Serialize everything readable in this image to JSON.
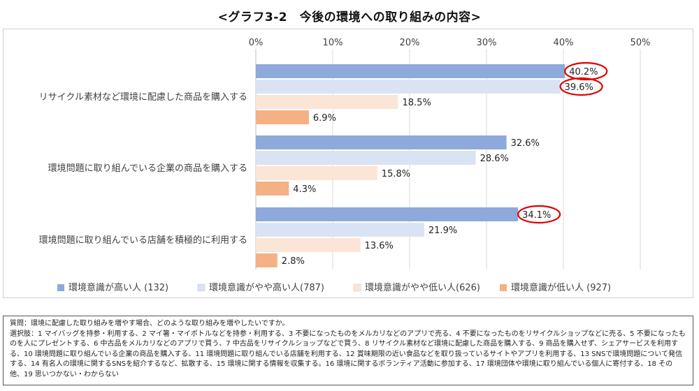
{
  "title": "<グラフ3-2　今後の環境への取り組みの内容>",
  "chart_data": {
    "type": "bar",
    "orientation": "horizontal",
    "title": "<グラフ3-2　今後の環境への取り組みの内容>",
    "categories": [
      "リサイクル素材など環境に配慮した商品を購入する",
      "環境問題に取り組んでいる企業の商品を購入する",
      "環境問題に取り組んでいる店舗を積極的に利用する"
    ],
    "series": [
      {
        "name": "環境意識が高い人 (132)",
        "values": [
          40.2,
          32.6,
          34.1
        ],
        "color": "#8ea9db"
      },
      {
        "name": "環境意識がやや高い人(787)",
        "values": [
          39.6,
          28.6,
          21.9
        ],
        "color": "#dae3f3"
      },
      {
        "name": "環境意識がやや低い人(626)",
        "values": [
          18.5,
          15.8,
          13.6
        ],
        "color": "#fbe5d6"
      },
      {
        "name": "環境意識が低い人 (927)",
        "values": [
          6.9,
          4.3,
          2.8
        ],
        "color": "#f4b183"
      }
    ],
    "x_ticks": [
      "0%",
      "10%",
      "20%",
      "30%",
      "40%",
      "50%"
    ],
    "xlim": [
      0,
      50
    ],
    "value_format": "percent_one_decimal",
    "highlighted": [
      [
        0,
        0
      ],
      [
        1,
        0
      ],
      [
        0,
        2
      ]
    ],
    "highlight_color": "#e00000",
    "legend_position": "bottom",
    "grid": true,
    "gridline_color": "#d9d9d9"
  },
  "notes": {
    "question": "質問：環境に配慮した取り組みを増やす場合、どのような取り組みを増やしたいですか。",
    "options": "選択肢：1 マイバッグを持参・利用する、2 マイ箸・マイボトルなどを持参・利用する、3 不要になったものをメルカリなどのアプリで売る、4 不要になったものをリサイクルショップなどに売る、5 不要になったものを人にプレゼントする、6 中古品をメルカリなどのアプリで買う、7 中古品をリサイクルショップなどで買う、8 リサイクル素材など環境に配慮した商品を購入する、9 商品を購入せず、シェアサービスを利用する、10 環境問題に取り組んでいる企業の商品を購入する、11 環境問題に取り組んでいる店舗を利用する、12 賞味期限の近い食品などを取り扱っているサイトやアプリを利用する、13 SNSで環境問題について発信する、14 有名人の環境に関するSNSを紹介するなど、拡散する、15 環境に関する情報を収集する。16 環境に関するボランティア活動に参加する、17 環境団体や環境に取り組んでいる個人に寄付する、18 その他、19 思いつかない・わからない"
  }
}
